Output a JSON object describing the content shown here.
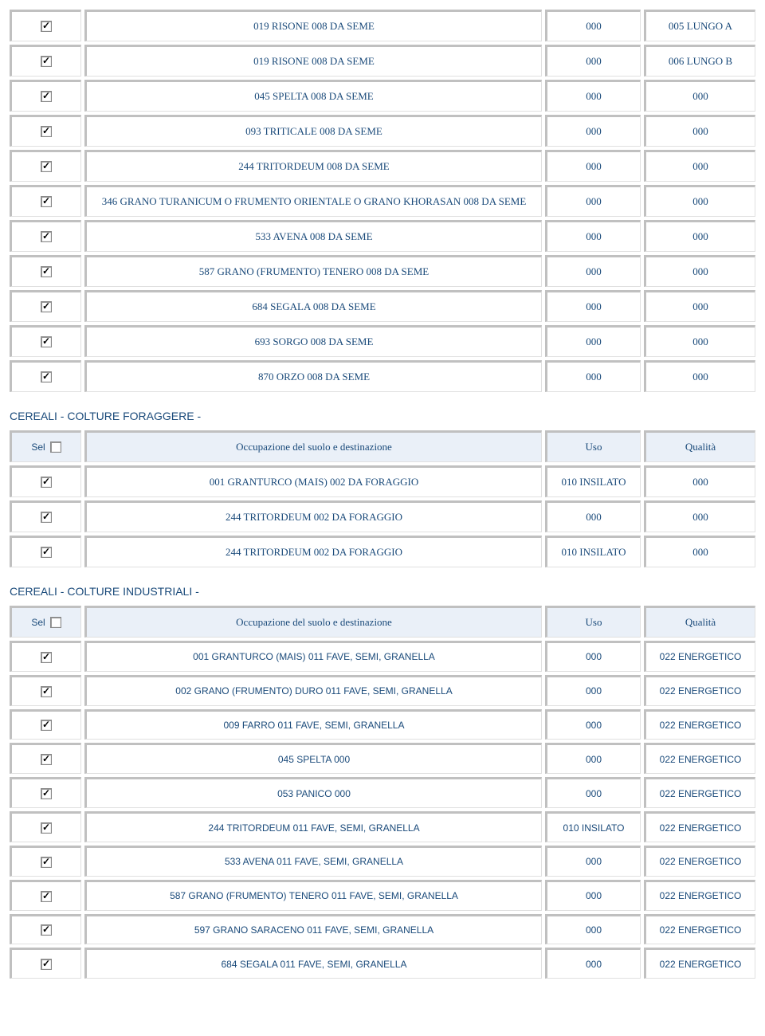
{
  "table1": {
    "rows": [
      {
        "desc": "019 RISONE 008 DA SEME",
        "uso": "000",
        "qual": "005 LUNGO A"
      },
      {
        "desc": "019 RISONE 008 DA SEME",
        "uso": "000",
        "qual": "006 LUNGO B"
      },
      {
        "desc": "045 SPELTA 008 DA SEME",
        "uso": "000",
        "qual": "000"
      },
      {
        "desc": "093 TRITICALE 008 DA SEME",
        "uso": "000",
        "qual": "000"
      },
      {
        "desc": "244 TRITORDEUM 008 DA SEME",
        "uso": "000",
        "qual": "000"
      },
      {
        "desc": "346 GRANO TURANICUM O FRUMENTO ORIENTALE O GRANO KHORASAN 008 DA SEME",
        "uso": "000",
        "qual": "000"
      },
      {
        "desc": "533 AVENA 008 DA SEME",
        "uso": "000",
        "qual": "000"
      },
      {
        "desc": "587 GRANO (FRUMENTO) TENERO 008 DA SEME",
        "uso": "000",
        "qual": "000"
      },
      {
        "desc": "684 SEGALA 008 DA SEME",
        "uso": "000",
        "qual": "000"
      },
      {
        "desc": "693 SORGO 008 DA SEME",
        "uso": "000",
        "qual": "000"
      },
      {
        "desc": "870 ORZO 008 DA SEME",
        "uso": "000",
        "qual": "000"
      }
    ]
  },
  "section2": {
    "title": "CEREALI - COLTURE FORAGGERE -",
    "headers": {
      "sel": "Sel",
      "desc": "Occupazione del suolo e destinazione",
      "uso": "Uso",
      "qual": "Qualità"
    },
    "rows": [
      {
        "desc": "001 GRANTURCO (MAIS) 002 DA FORAGGIO",
        "uso": "010 INSILATO",
        "qual": "000"
      },
      {
        "desc": "244 TRITORDEUM 002 DA FORAGGIO",
        "uso": "000",
        "qual": "000"
      },
      {
        "desc": "244 TRITORDEUM 002 DA FORAGGIO",
        "uso": "010 INSILATO",
        "qual": "000"
      }
    ]
  },
  "section3": {
    "title": "CEREALI - COLTURE INDUSTRIALI -",
    "headers": {
      "sel": "Sel",
      "desc": "Occupazione del suolo e destinazione",
      "uso": "Uso",
      "qual": "Qualità"
    },
    "rows": [
      {
        "desc": "001 GRANTURCO (MAIS) 011 FAVE, SEMI, GRANELLA",
        "uso": "000",
        "qual": "022 ENERGETICO"
      },
      {
        "desc": "002 GRANO (FRUMENTO) DURO 011 FAVE, SEMI, GRANELLA",
        "uso": "000",
        "qual": "022 ENERGETICO"
      },
      {
        "desc": "009 FARRO 011 FAVE, SEMI, GRANELLA",
        "uso": "000",
        "qual": "022 ENERGETICO"
      },
      {
        "desc": "045 SPELTA 000",
        "uso": "000",
        "qual": "022 ENERGETICO"
      },
      {
        "desc": "053 PANICO 000",
        "uso": "000",
        "qual": "022 ENERGETICO"
      },
      {
        "desc": "244 TRITORDEUM 011 FAVE, SEMI, GRANELLA",
        "uso": "010 INSILATO",
        "qual": "022 ENERGETICO"
      },
      {
        "desc": "533 AVENA 011 FAVE, SEMI, GRANELLA",
        "uso": "000",
        "qual": "022 ENERGETICO"
      },
      {
        "desc": "587 GRANO (FRUMENTO) TENERO 011 FAVE, SEMI, GRANELLA",
        "uso": "000",
        "qual": "022 ENERGETICO"
      },
      {
        "desc": "597 GRANO SARACENO 011 FAVE, SEMI, GRANELLA",
        "uso": "000",
        "qual": "022 ENERGETICO"
      },
      {
        "desc": "684 SEGALA 011 FAVE, SEMI, GRANELLA",
        "uso": "000",
        "qual": "022 ENERGETICO"
      }
    ]
  }
}
